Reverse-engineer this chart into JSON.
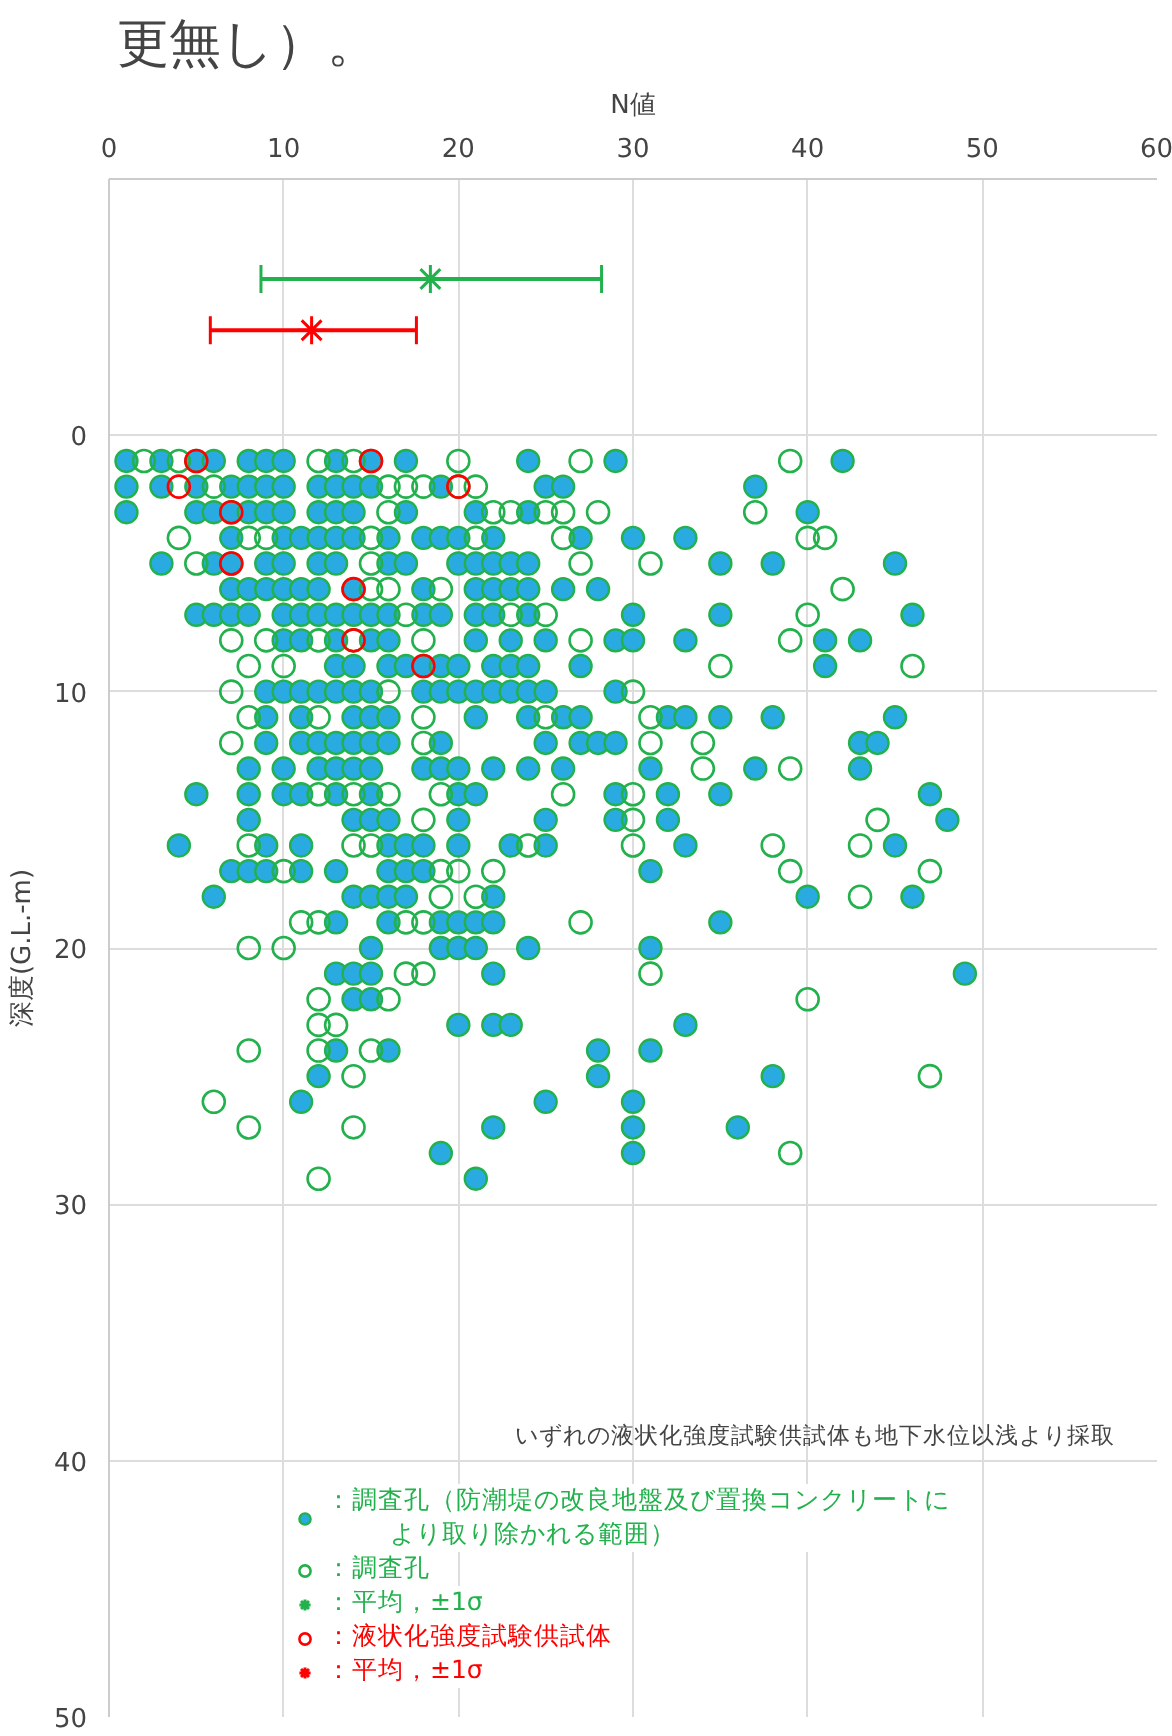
{
  "chart_data": {
    "type": "scatter",
    "xlabel": "N値",
    "ylabel": "深度(G.L.-m)",
    "xlim": [
      0,
      60
    ],
    "xticks": [
      0,
      10,
      20,
      30,
      40,
      50,
      60
    ],
    "ylim": [
      50,
      -10
    ],
    "yticks": [
      0,
      10,
      20,
      30,
      40,
      50
    ],
    "grid": true,
    "legend": "bottom right",
    "annotations": [
      "更無し）。",
      "いずれの液状化強度試験供試体も地下水位以浅より採取"
    ],
    "series": [
      {
        "name": "：調査孔（防潮堤の改良地盤及び置換コンクリートにより取り除かれる範囲）",
        "color": "#29abe2",
        "marker": "circle",
        "x": [
          1,
          3,
          5,
          6,
          8,
          9,
          10,
          13,
          15,
          17,
          24,
          29,
          42,
          1,
          3,
          5,
          7,
          8,
          9,
          10,
          12,
          13,
          14,
          15,
          19,
          25,
          26,
          37,
          1,
          5,
          6,
          7,
          8,
          9,
          10,
          12,
          13,
          14,
          17,
          21,
          24,
          40,
          7,
          10,
          11,
          12,
          13,
          14,
          16,
          18,
          19,
          20,
          22,
          27,
          30,
          33,
          3,
          6,
          7,
          9,
          10,
          12,
          13,
          16,
          17,
          20,
          21,
          22,
          23,
          24,
          35,
          38,
          45,
          7,
          8,
          9,
          10,
          11,
          12,
          14,
          18,
          21,
          22,
          23,
          24,
          26,
          28,
          5,
          6,
          7,
          8,
          10,
          11,
          12,
          13,
          14,
          15,
          16,
          18,
          19,
          21,
          22,
          24,
          30,
          35,
          46,
          10,
          11,
          13,
          15,
          16,
          21,
          23,
          25,
          29,
          30,
          33,
          41,
          43,
          13,
          14,
          16,
          17,
          18,
          19,
          20,
          22,
          23,
          24,
          27,
          41,
          9,
          10,
          11,
          12,
          13,
          14,
          15,
          18,
          19,
          20,
          21,
          22,
          23,
          24,
          25,
          29,
          9,
          11,
          14,
          15,
          16,
          21,
          24,
          26,
          27,
          32,
          33,
          35,
          38,
          45,
          9,
          11,
          12,
          13,
          14,
          15,
          16,
          19,
          25,
          27,
          28,
          29,
          43,
          44,
          8,
          10,
          12,
          13,
          14,
          15,
          18,
          19,
          20,
          22,
          24,
          26,
          31,
          37,
          43,
          5,
          8,
          10,
          11,
          13,
          15,
          20,
          21,
          29,
          32,
          35,
          47,
          8,
          14,
          15,
          16,
          20,
          25,
          29,
          32,
          48,
          4,
          9,
          11,
          16,
          17,
          18,
          20,
          23,
          25,
          33,
          45,
          7,
          8,
          9,
          11,
          13,
          16,
          17,
          18,
          31,
          6,
          14,
          15,
          16,
          17,
          22,
          40,
          46,
          13,
          16,
          19,
          20,
          21,
          22,
          35,
          15,
          19,
          20,
          21,
          24,
          31,
          13,
          14,
          15,
          22,
          49,
          14,
          15,
          20,
          22,
          23,
          33,
          13,
          16,
          28,
          31,
          12,
          28,
          38,
          11,
          25,
          30,
          22,
          30,
          36,
          19,
          30,
          21
        ],
        "values": [
          1,
          1,
          1,
          1,
          1,
          1,
          1,
          1,
          1,
          1,
          1,
          1,
          1,
          2,
          2,
          2,
          2,
          2,
          2,
          2,
          2,
          2,
          2,
          2,
          2,
          2,
          2,
          2,
          3,
          3,
          3,
          3,
          3,
          3,
          3,
          3,
          3,
          3,
          3,
          3,
          3,
          3,
          4,
          4,
          4,
          4,
          4,
          4,
          4,
          4,
          4,
          4,
          4,
          4,
          4,
          4,
          5,
          5,
          5,
          5,
          5,
          5,
          5,
          5,
          5,
          5,
          5,
          5,
          5,
          5,
          5,
          5,
          5,
          6,
          6,
          6,
          6,
          6,
          6,
          6,
          6,
          6,
          6,
          6,
          6,
          6,
          6,
          7,
          7,
          7,
          7,
          7,
          7,
          7,
          7,
          7,
          7,
          7,
          7,
          7,
          7,
          7,
          7,
          7,
          7,
          7,
          8,
          8,
          8,
          8,
          8,
          8,
          8,
          8,
          8,
          8,
          8,
          8,
          8,
          9,
          9,
          9,
          9,
          9,
          9,
          9,
          9,
          9,
          9,
          9,
          9,
          10,
          10,
          10,
          10,
          10,
          10,
          10,
          10,
          10,
          10,
          10,
          10,
          10,
          10,
          10,
          10,
          11,
          11,
          11,
          11,
          11,
          11,
          11,
          11,
          11,
          11,
          11,
          11,
          11,
          11,
          12,
          12,
          12,
          12,
          12,
          12,
          12,
          12,
          12,
          12,
          12,
          12,
          12,
          12,
          13,
          13,
          13,
          13,
          13,
          13,
          13,
          13,
          13,
          13,
          13,
          13,
          13,
          13,
          13,
          14,
          14,
          14,
          14,
          14,
          14,
          14,
          14,
          14,
          14,
          14,
          14,
          15,
          15,
          15,
          15,
          15,
          15,
          15,
          15,
          15,
          16,
          16,
          16,
          16,
          16,
          16,
          16,
          16,
          16,
          16,
          16,
          17,
          17,
          17,
          17,
          17,
          17,
          17,
          17,
          17,
          18,
          18,
          18,
          18,
          18,
          18,
          18,
          18,
          19,
          19,
          19,
          19,
          19,
          19,
          19,
          20,
          20,
          20,
          20,
          20,
          20,
          21,
          21,
          21,
          21,
          21,
          22,
          22,
          23,
          23,
          23,
          23,
          24,
          24,
          24,
          24,
          25,
          25,
          25,
          26,
          26,
          26,
          27,
          27,
          27,
          28,
          28,
          29
        ]
      },
      {
        "name": "：調査孔",
        "color": "#22b14c",
        "marker": "circle",
        "x": [
          2,
          4,
          12,
          14,
          20,
          27,
          39,
          6,
          16,
          17,
          18,
          20,
          21,
          16,
          22,
          23,
          25,
          26,
          28,
          37,
          4,
          8,
          9,
          15,
          21,
          26,
          40,
          41,
          5,
          15,
          27,
          31,
          15,
          16,
          19,
          42,
          17,
          23,
          25,
          40,
          7,
          9,
          12,
          14,
          18,
          27,
          39,
          8,
          10,
          35,
          46,
          7,
          16,
          30,
          8,
          12,
          18,
          25,
          31,
          7,
          18,
          31,
          34,
          34,
          39,
          12,
          14,
          16,
          19,
          26,
          30,
          18,
          30,
          44,
          8,
          14,
          15,
          24,
          30,
          38,
          43,
          10,
          19,
          20,
          22,
          39,
          47,
          19,
          21,
          43,
          11,
          12,
          17,
          18,
          27,
          8,
          10,
          17,
          18,
          31,
          12,
          16,
          40,
          12,
          13,
          8,
          12,
          15,
          14,
          47,
          6,
          8,
          14,
          39,
          12
        ],
        "values": [
          1,
          1,
          1,
          1,
          1,
          1,
          1,
          2,
          2,
          2,
          2,
          2,
          2,
          3,
          3,
          3,
          3,
          3,
          3,
          3,
          4,
          4,
          4,
          4,
          4,
          4,
          4,
          4,
          5,
          5,
          5,
          5,
          6,
          6,
          6,
          6,
          7,
          7,
          7,
          7,
          8,
          8,
          8,
          8,
          8,
          8,
          8,
          9,
          9,
          9,
          9,
          10,
          10,
          10,
          11,
          11,
          11,
          11,
          11,
          12,
          12,
          12,
          12,
          13,
          13,
          14,
          14,
          14,
          14,
          14,
          14,
          15,
          15,
          15,
          16,
          16,
          16,
          16,
          16,
          16,
          16,
          17,
          17,
          17,
          17,
          17,
          17,
          18,
          18,
          18,
          19,
          19,
          19,
          19,
          19,
          20,
          20,
          21,
          21,
          21,
          22,
          22,
          22,
          23,
          23,
          24,
          24,
          24,
          25,
          25,
          26,
          27,
          27,
          28,
          29
        ]
      },
      {
        "name": "：平均，±1σ",
        "color": "#22b14c",
        "marker": "cross",
        "x": [
          18.4
        ],
        "values": [
          -6.1
        ],
        "xerrors": [
          [
            8.7,
            28.2
          ]
        ]
      },
      {
        "name": "：液状化強度試験供試体",
        "color": "#ff0000",
        "marker": "circle",
        "x": [
          5,
          15,
          4,
          20,
          7,
          7,
          14,
          14,
          18
        ],
        "values": [
          1,
          1,
          2,
          2,
          3,
          5,
          6,
          8,
          9
        ]
      },
      {
        "name": "：平均，±1σ",
        "color": "#ff0000",
        "marker": "cross",
        "x": [
          11.6
        ],
        "values": [
          -4.1
        ],
        "xerrors": [
          [
            5.8,
            17.6
          ]
        ]
      }
    ]
  }
}
